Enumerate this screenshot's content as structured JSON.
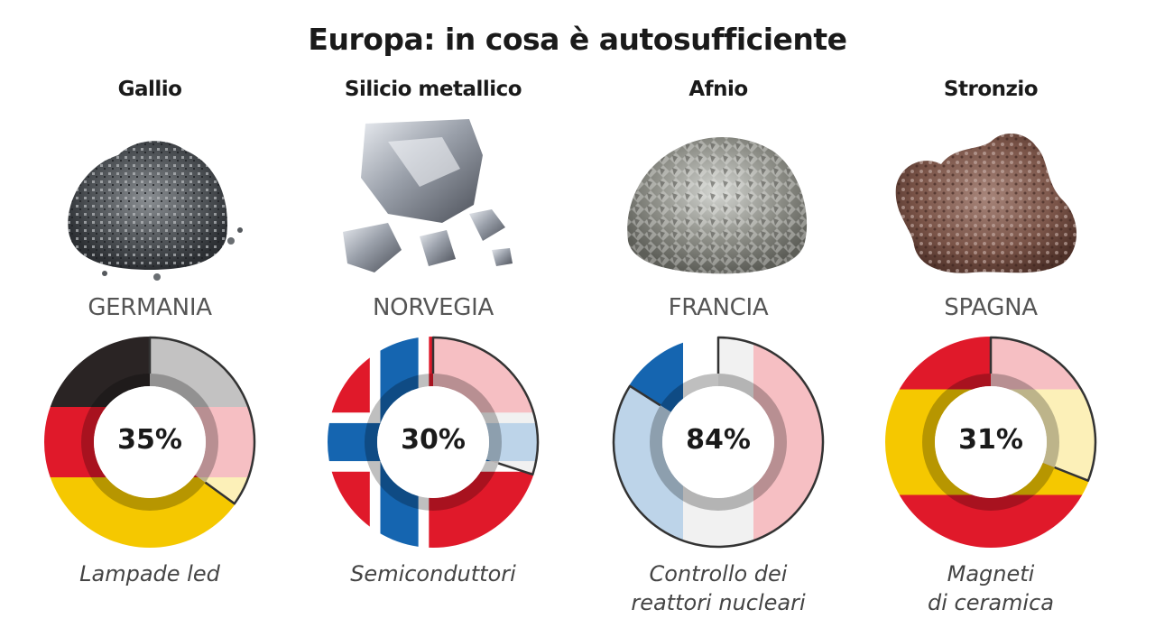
{
  "title": "Europa: in cosa è autosufficiente",
  "chart_data": {
    "type": "pie",
    "title": "Europa: in cosa è autosufficiente",
    "panels": [
      {
        "mineral": "Gallio",
        "country": "GERMANIA",
        "value": 35,
        "label": "35%",
        "use": [
          "Lampade led"
        ],
        "flag_colors": [
          "#2a2424",
          "#e0192a",
          "#f5c800"
        ],
        "flag_orientation": "horizontal"
      },
      {
        "mineral": "Silicio metallico",
        "country": "NORVEGIA",
        "value": 30,
        "label": "30%",
        "use": [
          "Semiconduttori"
        ],
        "flag_colors": [
          "#e0192a",
          "#1565b0",
          "#ffffff"
        ],
        "flag_orientation": "nordic-cross"
      },
      {
        "mineral": "Afnio",
        "country": "FRANCIA",
        "value": 84,
        "label": "84%",
        "use": [
          "Controllo dei",
          "reattori nucleari"
        ],
        "flag_colors": [
          "#1565b0",
          "#ffffff",
          "#e0192a"
        ],
        "flag_orientation": "vertical"
      },
      {
        "mineral": "Stronzio",
        "country": "SPAGNA",
        "value": 31,
        "label": "31%",
        "use": [
          "Magneti",
          "di ceramica"
        ],
        "flag_colors": [
          "#e0192a",
          "#f5c800"
        ],
        "flag_orientation": "horizontal"
      }
    ]
  },
  "icons": [
    "gallium-rock-icon",
    "silicon-rock-icon",
    "hafnium-rock-icon",
    "strontium-rock-icon"
  ]
}
